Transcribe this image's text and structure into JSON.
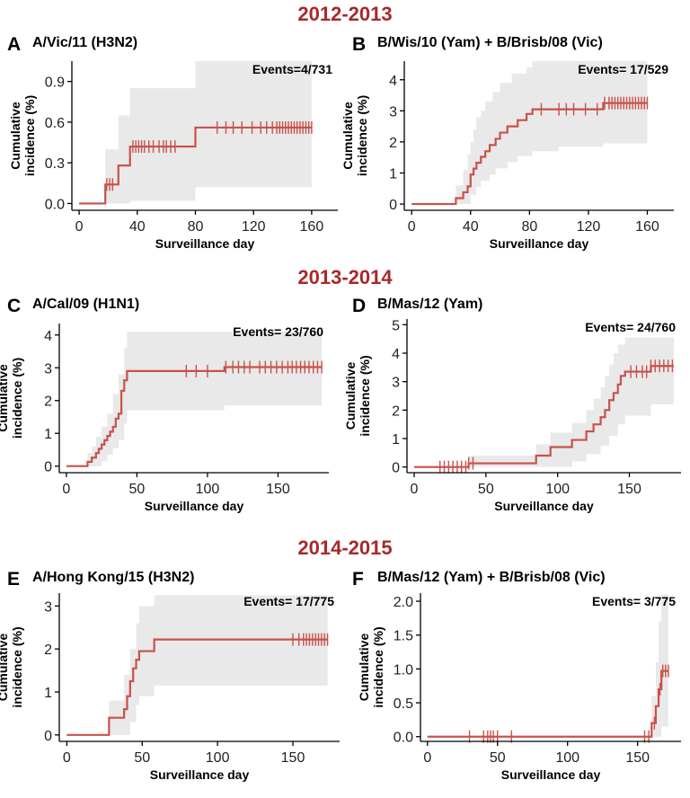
{
  "colors": {
    "line": "#c9514a",
    "season": "#a8292c",
    "ci": "#e9e9e9"
  },
  "seasons": [
    "2012-2013",
    "2013-2014",
    "2014-2015"
  ],
  "chart_data": [
    {
      "type": "line",
      "letter": "A",
      "title": "A/Vic/11 (H3N2)",
      "season": "2012-2013",
      "events": "Events=4/731",
      "xlabel": "Surveillance day",
      "ylabel_line1": "Cumulative",
      "ylabel_line2": "incidence (%)",
      "xlim": [
        -5,
        178
      ],
      "ylim": [
        -0.05,
        1.05
      ],
      "xticks": [
        0,
        40,
        80,
        120,
        160
      ],
      "yticks": [
        0.0,
        0.3,
        0.6,
        0.9
      ],
      "ytick_labels": [
        "0.0",
        "0.3",
        "0.6",
        "0.9"
      ],
      "steps": [
        [
          0,
          0
        ],
        [
          18,
          0.14
        ],
        [
          27,
          0.28
        ],
        [
          35,
          0.42
        ],
        [
          80,
          0.56
        ],
        [
          160,
          0.56
        ]
      ],
      "ci_upper": [
        [
          0,
          0
        ],
        [
          15,
          0
        ],
        [
          18,
          0.4
        ],
        [
          27,
          0.65
        ],
        [
          35,
          0.85
        ],
        [
          80,
          1.05
        ],
        [
          160,
          1.05
        ]
      ],
      "ci_lower": [
        [
          0,
          0
        ],
        [
          27,
          0
        ],
        [
          35,
          0.02
        ],
        [
          80,
          0.12
        ],
        [
          160,
          0.12
        ]
      ],
      "censor_times": [
        19,
        21,
        23,
        37,
        39,
        41,
        43,
        45,
        48,
        51,
        55,
        58,
        60,
        63,
        66,
        95,
        101,
        106,
        112,
        119,
        125,
        129,
        133,
        136,
        138,
        140,
        142,
        144,
        146,
        148,
        150,
        152,
        154,
        156,
        158,
        160
      ]
    },
    {
      "type": "line",
      "letter": "B",
      "title": "B/Wis/10 (Yam) + B/Brisb/08 (Vic)",
      "season": "2012-2013",
      "events": "Events= 17/529",
      "xlabel": "Surveillance day",
      "ylabel_line1": "Cumulative",
      "ylabel_line2": "incidence (%)",
      "xlim": [
        -5,
        178
      ],
      "ylim": [
        -0.2,
        4.6
      ],
      "xticks": [
        0,
        40,
        80,
        120,
        160
      ],
      "yticks": [
        0,
        1,
        2,
        3,
        4
      ],
      "ytick_labels": [
        "0",
        "1",
        "2",
        "3",
        "4"
      ],
      "steps": [
        [
          0,
          0
        ],
        [
          30,
          0.19
        ],
        [
          35,
          0.38
        ],
        [
          38,
          0.57
        ],
        [
          40,
          0.95
        ],
        [
          42,
          1.14
        ],
        [
          44,
          1.33
        ],
        [
          47,
          1.52
        ],
        [
          50,
          1.7
        ],
        [
          53,
          1.9
        ],
        [
          57,
          2.1
        ],
        [
          60,
          2.3
        ],
        [
          65,
          2.5
        ],
        [
          72,
          2.7
        ],
        [
          78,
          2.9
        ],
        [
          82,
          3.05
        ],
        [
          130,
          3.25
        ],
        [
          160,
          3.25
        ]
      ],
      "ci_upper": [
        [
          0,
          0
        ],
        [
          28,
          0
        ],
        [
          30,
          0.6
        ],
        [
          35,
          1.1
        ],
        [
          38,
          1.6
        ],
        [
          40,
          2.0
        ],
        [
          42,
          2.4
        ],
        [
          44,
          2.8
        ],
        [
          47,
          3.0
        ],
        [
          50,
          3.3
        ],
        [
          55,
          3.6
        ],
        [
          60,
          3.9
        ],
        [
          68,
          4.2
        ],
        [
          78,
          4.4
        ],
        [
          82,
          4.6
        ],
        [
          160,
          4.6
        ]
      ],
      "ci_lower": [
        [
          0,
          0
        ],
        [
          38,
          0
        ],
        [
          40,
          0.3
        ],
        [
          44,
          0.55
        ],
        [
          47,
          0.75
        ],
        [
          53,
          0.95
        ],
        [
          57,
          1.15
        ],
        [
          65,
          1.35
        ],
        [
          72,
          1.55
        ],
        [
          82,
          1.7
        ],
        [
          100,
          1.85
        ],
        [
          130,
          1.95
        ],
        [
          160,
          1.95
        ]
      ],
      "censor_times": [
        88,
        100,
        105,
        110,
        118,
        126,
        131,
        134,
        136,
        138,
        140,
        142,
        144,
        146,
        148,
        150,
        152,
        154,
        156,
        158,
        160
      ]
    },
    {
      "type": "line",
      "letter": "C",
      "title": "A/Cal/09 (H1N1)",
      "season": "2013-2014",
      "events": "Events= 23/760",
      "xlabel": "Surveillance day",
      "ylabel_line1": "Cumulative",
      "ylabel_line2": "incidence (%)",
      "xlim": [
        -5,
        186
      ],
      "ylim": [
        -0.2,
        4.35
      ],
      "xticks": [
        0,
        50,
        100,
        150
      ],
      "yticks": [
        0,
        1,
        2,
        3,
        4
      ],
      "ytick_labels": [
        "0",
        "1",
        "2",
        "3",
        "4"
      ],
      "steps": [
        [
          0,
          0
        ],
        [
          15,
          0.13
        ],
        [
          18,
          0.26
        ],
        [
          21,
          0.4
        ],
        [
          23,
          0.53
        ],
        [
          25,
          0.66
        ],
        [
          27,
          0.79
        ],
        [
          29,
          0.92
        ],
        [
          31,
          1.05
        ],
        [
          33,
          1.2
        ],
        [
          35,
          1.45
        ],
        [
          37,
          1.6
        ],
        [
          39,
          2.3
        ],
        [
          41,
          2.62
        ],
        [
          43,
          2.9
        ],
        [
          112,
          3.02
        ],
        [
          181,
          3.02
        ]
      ],
      "ci_upper": [
        [
          0,
          0
        ],
        [
          12,
          0
        ],
        [
          15,
          0.4
        ],
        [
          18,
          0.6
        ],
        [
          21,
          0.9
        ],
        [
          25,
          1.2
        ],
        [
          29,
          1.6
        ],
        [
          33,
          2.2
        ],
        [
          37,
          2.8
        ],
        [
          41,
          3.6
        ],
        [
          43,
          4.1
        ],
        [
          181,
          4.1
        ]
      ],
      "ci_lower": [
        [
          0,
          0
        ],
        [
          20,
          0
        ],
        [
          25,
          0.15
        ],
        [
          29,
          0.35
        ],
        [
          33,
          0.55
        ],
        [
          37,
          0.8
        ],
        [
          41,
          1.3
        ],
        [
          43,
          1.7
        ],
        [
          112,
          1.85
        ],
        [
          181,
          1.85
        ]
      ],
      "censor_times": [
        85,
        92,
        100,
        113,
        118,
        122,
        126,
        130,
        137,
        141,
        145,
        149,
        153,
        157,
        160,
        163,
        166,
        169,
        172,
        175,
        178,
        181
      ]
    },
    {
      "type": "line",
      "letter": "D",
      "title": "B/Mas/12 (Yam)",
      "season": "2013-2014",
      "events": "Events= 24/760",
      "xlabel": "Surveillance day",
      "ylabel_line1": "Cumulative",
      "ylabel_line2": "incidence (%)",
      "xlim": [
        -5,
        186
      ],
      "ylim": [
        -0.2,
        5.2
      ],
      "xticks": [
        0,
        50,
        100,
        150
      ],
      "yticks": [
        0,
        1,
        2,
        3,
        4,
        5
      ],
      "ytick_labels": [
        "0",
        "1",
        "2",
        "3",
        "4",
        "5"
      ],
      "steps": [
        [
          0,
          0
        ],
        [
          38,
          0.13
        ],
        [
          85,
          0.4
        ],
        [
          95,
          0.7
        ],
        [
          110,
          0.95
        ],
        [
          120,
          1.25
        ],
        [
          125,
          1.5
        ],
        [
          130,
          1.75
        ],
        [
          133,
          2.0
        ],
        [
          136,
          2.35
        ],
        [
          139,
          2.6
        ],
        [
          142,
          2.9
        ],
        [
          144,
          3.2
        ],
        [
          147,
          3.35
        ],
        [
          165,
          3.55
        ],
        [
          181,
          3.55
        ]
      ],
      "ci_upper": [
        [
          0,
          0
        ],
        [
          35,
          0
        ],
        [
          38,
          0.4
        ],
        [
          85,
          0.8
        ],
        [
          95,
          1.2
        ],
        [
          110,
          1.55
        ],
        [
          120,
          2.0
        ],
        [
          125,
          2.4
        ],
        [
          130,
          2.8
        ],
        [
          133,
          3.2
        ],
        [
          136,
          3.6
        ],
        [
          139,
          4.0
        ],
        [
          142,
          4.3
        ],
        [
          147,
          4.55
        ],
        [
          181,
          4.55
        ]
      ],
      "ci_lower": [
        [
          0,
          0
        ],
        [
          95,
          0
        ],
        [
          110,
          0.2
        ],
        [
          120,
          0.45
        ],
        [
          130,
          0.75
        ],
        [
          136,
          1.1
        ],
        [
          142,
          1.5
        ],
        [
          147,
          1.8
        ],
        [
          165,
          2.2
        ],
        [
          181,
          2.2
        ]
      ],
      "censor_times": [
        18,
        21,
        24,
        27,
        30,
        33,
        36,
        38,
        41,
        151,
        155,
        159,
        162,
        165,
        168,
        171,
        174,
        177,
        180
      ]
    },
    {
      "type": "line",
      "letter": "E",
      "title": "A/Hong Kong/15 (H3N2)",
      "season": "2014-2015",
      "events": "Events= 17/775",
      "xlabel": "Surveillance day",
      "ylabel_line1": "Cumulative",
      "ylabel_line2": "incidence (%)",
      "xlim": [
        -5,
        181
      ],
      "ylim": [
        -0.15,
        3.3
      ],
      "xticks": [
        0,
        50,
        100,
        150
      ],
      "yticks": [
        0,
        1,
        2,
        3
      ],
      "ytick_labels": [
        "0",
        "1",
        "2",
        "3"
      ],
      "steps": [
        [
          0,
          0
        ],
        [
          28,
          0.4
        ],
        [
          38,
          0.6
        ],
        [
          40,
          0.9
        ],
        [
          42,
          1.25
        ],
        [
          44,
          1.55
        ],
        [
          46,
          1.75
        ],
        [
          48,
          1.95
        ],
        [
          58,
          2.22
        ],
        [
          173,
          2.22
        ]
      ],
      "ci_upper": [
        [
          0,
          0
        ],
        [
          25,
          0
        ],
        [
          28,
          0.8
        ],
        [
          38,
          1.4
        ],
        [
          42,
          2.0
        ],
        [
          46,
          2.6
        ],
        [
          48,
          3.0
        ],
        [
          58,
          3.25
        ],
        [
          173,
          3.25
        ]
      ],
      "ci_lower": [
        [
          0,
          0
        ],
        [
          38,
          0
        ],
        [
          42,
          0.3
        ],
        [
          46,
          0.7
        ],
        [
          48,
          0.9
        ],
        [
          58,
          1.15
        ],
        [
          173,
          1.15
        ]
      ],
      "censor_times": [
        150,
        154,
        157,
        159,
        161,
        163,
        165,
        167,
        169,
        171,
        173
      ]
    },
    {
      "type": "line",
      "letter": "F",
      "title": "B/Mas/12 (Yam) + B/Brisb/08 (Vic)",
      "season": "2014-2015",
      "events": "Events= 3/775",
      "xlabel": "Surveillance day",
      "ylabel_line1": "Cumulative",
      "ylabel_line2": "incidence (%)",
      "xlim": [
        -5,
        181
      ],
      "ylim": [
        -0.07,
        2.12
      ],
      "xticks": [
        0,
        50,
        100,
        150
      ],
      "yticks": [
        0.0,
        0.5,
        1.0,
        1.5,
        2.0
      ],
      "ytick_labels": [
        "0.0",
        "0.5",
        "1.0",
        "1.5",
        "2.0"
      ],
      "steps": [
        [
          0,
          0
        ],
        [
          160,
          0.2
        ],
        [
          163,
          0.45
        ],
        [
          165,
          0.7
        ],
        [
          167,
          0.97
        ],
        [
          172,
          0.97
        ]
      ],
      "ci_upper": [
        [
          0,
          0
        ],
        [
          157,
          0
        ],
        [
          160,
          0.6
        ],
        [
          163,
          1.1
        ],
        [
          165,
          1.7
        ],
        [
          167,
          2.1
        ],
        [
          172,
          2.1
        ]
      ],
      "ci_lower": [
        [
          0,
          0
        ],
        [
          165,
          0
        ],
        [
          167,
          0.15
        ],
        [
          172,
          0.15
        ]
      ],
      "censor_times": [
        30,
        40,
        43,
        45,
        47,
        50,
        60,
        155,
        158,
        162,
        166,
        168,
        170,
        172
      ]
    }
  ]
}
